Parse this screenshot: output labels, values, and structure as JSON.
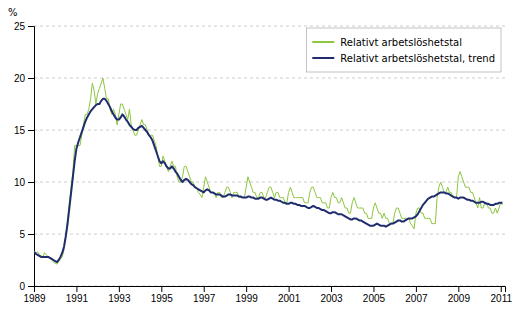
{
  "chart_data": {
    "type": "line",
    "ylabel": "%",
    "x": [
      1989,
      1989.0833333333333,
      1989.1666666666667,
      1989.25,
      1989.3333333333333,
      1989.4166666666667,
      1989.5,
      1989.5833333333333,
      1989.6666666666667,
      1989.75,
      1989.8333333333333,
      1989.9166666666667,
      1990,
      1990.0833333333333,
      1990.1666666666667,
      1990.25,
      1990.3333333333333,
      1990.4166666666667,
      1990.5,
      1990.5833333333333,
      1990.6666666666667,
      1990.75,
      1990.8333333333333,
      1990.9166666666667,
      1991,
      1991.0833333333333,
      1991.1666666666667,
      1991.25,
      1991.3333333333333,
      1991.4166666666667,
      1991.5,
      1991.5833333333333,
      1991.6666666666667,
      1991.75,
      1991.8333333333333,
      1991.9166666666667,
      1992,
      1992.0833333333333,
      1992.1666666666667,
      1992.25,
      1992.3333333333333,
      1992.4166666666667,
      1992.5,
      1992.5833333333333,
      1992.6666666666667,
      1992.75,
      1992.8333333333333,
      1992.9166666666667,
      1993,
      1993.0833333333333,
      1993.1666666666667,
      1993.25,
      1993.3333333333333,
      1993.4166666666667,
      1993.5,
      1993.5833333333333,
      1993.6666666666667,
      1993.75,
      1993.8333333333333,
      1993.9166666666667,
      1994,
      1994.0833333333333,
      1994.1666666666667,
      1994.25,
      1994.3333333333333,
      1994.4166666666667,
      1994.5,
      1994.5833333333333,
      1994.6666666666667,
      1994.75,
      1994.8333333333333,
      1994.9166666666667,
      1995,
      1995.0833333333333,
      1995.1666666666667,
      1995.25,
      1995.3333333333333,
      1995.4166666666667,
      1995.5,
      1995.5833333333333,
      1995.6666666666667,
      1995.75,
      1995.8333333333333,
      1995.9166666666667,
      1996,
      1996.0833333333333,
      1996.1666666666667,
      1996.25,
      1996.3333333333333,
      1996.4166666666667,
      1996.5,
      1996.5833333333333,
      1996.6666666666667,
      1996.75,
      1996.8333333333333,
      1996.9166666666667,
      1997,
      1997.0833333333333,
      1997.1666666666667,
      1997.25,
      1997.3333333333333,
      1997.4166666666667,
      1997.5,
      1997.5833333333333,
      1997.6666666666667,
      1997.75,
      1997.8333333333333,
      1997.9166666666667,
      1998,
      1998.0833333333333,
      1998.1666666666667,
      1998.25,
      1998.3333333333333,
      1998.4166666666667,
      1998.5,
      1998.5833333333333,
      1998.6666666666667,
      1998.75,
      1998.8333333333333,
      1998.9166666666667,
      1999,
      1999.0833333333333,
      1999.1666666666667,
      1999.25,
      1999.3333333333333,
      1999.4166666666667,
      1999.5,
      1999.5833333333333,
      1999.6666666666667,
      1999.75,
      1999.8333333333333,
      1999.9166666666667,
      2000,
      2000.0833333333333,
      2000.1666666666667,
      2000.25,
      2000.3333333333333,
      2000.4166666666667,
      2000.5,
      2000.5833333333333,
      2000.6666666666667,
      2000.75,
      2000.8333333333333,
      2000.9166666666667,
      2001,
      2001.0833333333333,
      2001.1666666666667,
      2001.25,
      2001.3333333333333,
      2001.4166666666667,
      2001.5,
      2001.5833333333333,
      2001.6666666666667,
      2001.75,
      2001.8333333333333,
      2001.9166666666667,
      2002,
      2002.0833333333333,
      2002.1666666666667,
      2002.25,
      2002.3333333333333,
      2002.4166666666667,
      2002.5,
      2002.5833333333333,
      2002.6666666666667,
      2002.75,
      2002.8333333333333,
      2002.9166666666667,
      2003,
      2003.0833333333333,
      2003.1666666666667,
      2003.25,
      2003.3333333333333,
      2003.4166666666667,
      2003.5,
      2003.5833333333333,
      2003.6666666666667,
      2003.75,
      2003.8333333333333,
      2003.9166666666667,
      2004,
      2004.0833333333333,
      2004.1666666666667,
      2004.25,
      2004.3333333333333,
      2004.4166666666667,
      2004.5,
      2004.5833333333333,
      2004.6666666666667,
      2004.75,
      2004.8333333333333,
      2004.9166666666667,
      2005,
      2005.0833333333333,
      2005.1666666666667,
      2005.25,
      2005.3333333333333,
      2005.4166666666667,
      2005.5,
      2005.5833333333333,
      2005.6666666666667,
      2005.75,
      2005.8333333333333,
      2005.9166666666667,
      2006,
      2006.0833333333333,
      2006.1666666666667,
      2006.25,
      2006.3333333333333,
      2006.4166666666667,
      2006.5,
      2006.5833333333333,
      2006.6666666666667,
      2006.75,
      2006.8333333333333,
      2006.9166666666667,
      2007,
      2007.0833333333333,
      2007.1666666666667,
      2007.25,
      2007.3333333333333,
      2007.4166666666667,
      2007.5,
      2007.5833333333333,
      2007.6666666666667,
      2007.75,
      2007.8333333333333,
      2007.9166666666667,
      2008,
      2008.0833333333333,
      2008.1666666666667,
      2008.25,
      2008.3333333333333,
      2008.4166666666667,
      2008.5,
      2008.5833333333333,
      2008.6666666666667,
      2008.75,
      2008.8333333333333,
      2008.9166666666667,
      2009,
      2009.0833333333333,
      2009.1666666666667,
      2009.25,
      2009.3333333333333,
      2009.4166666666667,
      2009.5,
      2009.5833333333333,
      2009.6666666666667,
      2009.75,
      2009.8333333333333,
      2009.9166666666667,
      2010,
      2010.0833333333333,
      2010.1666666666667,
      2010.25,
      2010.3333333333333,
      2010.4166666666667,
      2010.5,
      2010.5833333333333,
      2010.6666666666667,
      2010.75,
      2010.8333333333333,
      2010.9166666666667,
      2011,
      2011.0833333333333
    ],
    "series": [
      {
        "name": "Relativt arbetslöshetstal",
        "color": "#8dc63f",
        "values": [
          3.4,
          3.1,
          3.3,
          3.0,
          2.9,
          2.8,
          3.2,
          3.0,
          2.8,
          2.7,
          2.5,
          2.3,
          2.2,
          2.1,
          2.4,
          2.6,
          2.8,
          3.5,
          5.0,
          6.5,
          8.0,
          9.5,
          11.0,
          13.5,
          13.5,
          13.5,
          13.5,
          14.5,
          15.5,
          16.5,
          16.5,
          17.0,
          18.0,
          19.5,
          18.8,
          17.5,
          18.5,
          19.0,
          19.5,
          20.0,
          19.0,
          18.0,
          18.0,
          17.0,
          16.5,
          17.0,
          16.5,
          15.5,
          16.5,
          17.5,
          17.5,
          17.0,
          16.5,
          16.0,
          17.0,
          15.5,
          15.0,
          14.5,
          14.5,
          15.0,
          15.5,
          16.0,
          15.5,
          15.5,
          15.0,
          14.5,
          14.5,
          14.5,
          14.0,
          13.5,
          12.5,
          11.5,
          11.5,
          12.5,
          12.0,
          11.5,
          11.0,
          11.5,
          12.0,
          11.5,
          11.5,
          10.5,
          10.0,
          10.0,
          10.5,
          11.5,
          11.5,
          11.0,
          10.5,
          10.0,
          10.0,
          9.5,
          9.5,
          9.0,
          8.8,
          8.5,
          9.5,
          10.5,
          10.0,
          9.5,
          9.0,
          9.0,
          9.0,
          8.5,
          9.0,
          9.0,
          8.5,
          8.5,
          9.0,
          9.5,
          9.5,
          9.0,
          8.5,
          9.0,
          9.0,
          9.0,
          8.5,
          8.5,
          8.5,
          8.5,
          9.5,
          10.5,
          10.0,
          9.5,
          9.0,
          9.0,
          8.5,
          8.5,
          9.0,
          9.0,
          8.5,
          8.5,
          9.0,
          9.5,
          9.5,
          9.0,
          8.5,
          9.0,
          9.0,
          8.5,
          8.5,
          8.5,
          8.0,
          8.0,
          9.0,
          9.5,
          9.0,
          8.5,
          8.5,
          8.5,
          8.5,
          8.5,
          8.5,
          8.0,
          8.0,
          8.0,
          9.0,
          9.5,
          9.5,
          9.0,
          8.5,
          8.5,
          8.5,
          8.0,
          8.0,
          8.0,
          7.5,
          7.5,
          8.5,
          9.0,
          8.5,
          8.5,
          8.0,
          8.0,
          8.5,
          8.0,
          7.5,
          7.5,
          7.0,
          7.0,
          8.0,
          8.5,
          8.0,
          7.5,
          7.5,
          7.5,
          7.5,
          7.0,
          7.0,
          6.5,
          6.5,
          6.5,
          7.5,
          8.0,
          7.5,
          7.0,
          7.0,
          6.5,
          7.0,
          6.5,
          6.5,
          6.0,
          6.0,
          6.0,
          7.0,
          7.5,
          7.5,
          7.0,
          6.5,
          6.5,
          6.5,
          6.5,
          6.5,
          6.0,
          5.8,
          5.5,
          7.0,
          7.5,
          7.5,
          7.0,
          7.0,
          6.5,
          6.5,
          6.5,
          6.5,
          6.0,
          6.0,
          6.0,
          8.5,
          9.5,
          10.0,
          9.5,
          9.0,
          9.0,
          9.5,
          9.0,
          9.0,
          8.5,
          8.5,
          8.5,
          10.5,
          11.0,
          10.5,
          10.0,
          9.5,
          9.5,
          9.5,
          9.0,
          9.0,
          8.5,
          8.0,
          7.5,
          8.5,
          7.5,
          7.5,
          8.0,
          8.0,
          7.5,
          7.5,
          7.0,
          7.0,
          7.5,
          7.0,
          7.5,
          8.0,
          7.8
        ]
      },
      {
        "name": "Relativt arbetslöshetstal, trend",
        "color": "#1f2d6e",
        "values": [
          3.3,
          3.1,
          3.0,
          2.9,
          2.8,
          2.8,
          2.8,
          2.8,
          2.8,
          2.7,
          2.6,
          2.5,
          2.4,
          2.3,
          2.5,
          2.8,
          3.2,
          3.8,
          4.8,
          6.0,
          7.5,
          9.0,
          10.5,
          12.0,
          13.2,
          13.8,
          14.3,
          14.8,
          15.3,
          15.8,
          16.2,
          16.5,
          16.8,
          17.0,
          17.2,
          17.4,
          17.5,
          17.5,
          17.8,
          18.0,
          18.0,
          17.8,
          17.5,
          17.2,
          16.8,
          16.5,
          16.2,
          16.0,
          16.0,
          16.2,
          16.5,
          16.3,
          16.0,
          15.8,
          15.5,
          15.3,
          15.1,
          15.0,
          15.0,
          15.2,
          15.3,
          15.4,
          15.2,
          15.0,
          14.8,
          14.5,
          14.3,
          14.0,
          13.5,
          13.0,
          12.5,
          12.0,
          11.8,
          12.0,
          11.8,
          11.5,
          11.3,
          11.3,
          11.5,
          11.3,
          11.0,
          10.8,
          10.5,
          10.2,
          10.0,
          10.2,
          10.3,
          10.2,
          10.0,
          9.8,
          9.7,
          9.5,
          9.4,
          9.3,
          9.2,
          9.1,
          9.0,
          9.2,
          9.3,
          9.2,
          9.0,
          9.0,
          8.9,
          8.8,
          8.8,
          8.8,
          8.7,
          8.6,
          8.6,
          8.7,
          8.8,
          8.8,
          8.7,
          8.7,
          8.7,
          8.7,
          8.6,
          8.6,
          8.5,
          8.5,
          8.5,
          8.6,
          8.6,
          8.5,
          8.5,
          8.4,
          8.4,
          8.4,
          8.5,
          8.5,
          8.4,
          8.3,
          8.3,
          8.4,
          8.5,
          8.4,
          8.3,
          8.3,
          8.2,
          8.2,
          8.1,
          8.0,
          8.0,
          7.9,
          7.9,
          8.0,
          8.0,
          7.9,
          7.9,
          7.8,
          7.8,
          7.7,
          7.7,
          7.7,
          7.6,
          7.5,
          7.5,
          7.6,
          7.7,
          7.6,
          7.5,
          7.5,
          7.4,
          7.3,
          7.3,
          7.2,
          7.1,
          7.0,
          7.0,
          7.1,
          7.1,
          7.0,
          6.9,
          6.9,
          6.9,
          6.8,
          6.7,
          6.6,
          6.5,
          6.4,
          6.4,
          6.5,
          6.5,
          6.4,
          6.3,
          6.3,
          6.2,
          6.1,
          6.0,
          5.9,
          5.8,
          5.8,
          5.8,
          5.9,
          6.0,
          5.9,
          5.8,
          5.8,
          5.8,
          5.7,
          5.8,
          5.9,
          6.0,
          6.0,
          6.1,
          6.2,
          6.3,
          6.3,
          6.2,
          6.2,
          6.3,
          6.4,
          6.5,
          6.5,
          6.5,
          6.6,
          6.7,
          6.9,
          7.2,
          7.5,
          7.8,
          8.0,
          8.2,
          8.4,
          8.5,
          8.6,
          8.6,
          8.7,
          8.8,
          8.9,
          9.0,
          9.0,
          9.0,
          8.9,
          8.9,
          8.8,
          8.7,
          8.6,
          8.5,
          8.5,
          8.4,
          8.5,
          8.5,
          8.5,
          8.4,
          8.3,
          8.3,
          8.2,
          8.2,
          8.1,
          8.0,
          8.0,
          8.0,
          8.1,
          8.1,
          8.0,
          7.9,
          7.9,
          7.8,
          7.8,
          7.8,
          7.9,
          7.9,
          8.0,
          8.0,
          8.0
        ]
      }
    ],
    "xlim": [
      1989.0,
      2011.2
    ],
    "xticks": [
      1989,
      1991,
      1993,
      1995,
      1997,
      1999,
      2001,
      2003,
      2005,
      2007,
      2009,
      2011
    ],
    "ylim": [
      0,
      25
    ],
    "yticks": [
      0,
      5,
      10,
      15,
      20,
      25
    ],
    "grid": true,
    "legend": "upper right"
  }
}
